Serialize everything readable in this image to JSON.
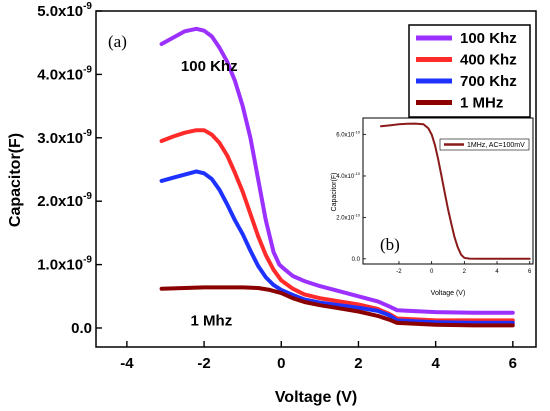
{
  "chart_data": [
    {
      "type": "line",
      "panel_label": "(a)",
      "xlabel": "Voltage (V)",
      "ylabel": "Capacitor(F)",
      "xlim": [
        -4.8,
        6.6
      ],
      "ylim": [
        -3e-10,
        5e-09
      ],
      "xticks": [
        -4,
        -2,
        0,
        2,
        4,
        6
      ],
      "xtick_labels": [
        "-4",
        "-2",
        "0",
        "2",
        "4",
        "6"
      ],
      "yticks": [
        0,
        1e-09,
        2e-09,
        3e-09,
        4e-09,
        5e-09
      ],
      "ytick_labels": [
        {
          "mantissa": "0.0",
          "exp": ""
        },
        {
          "mantissa": "1.0x10",
          "exp": "-9"
        },
        {
          "mantissa": "2.0x10",
          "exp": "-9"
        },
        {
          "mantissa": "3.0x10",
          "exp": "-9"
        },
        {
          "mantissa": "4.0x10",
          "exp": "-9"
        },
        {
          "mantissa": "5.0x10",
          "exp": "-9"
        }
      ],
      "legend_position": "top-right",
      "annotations": [
        {
          "text": "100 Khz",
          "x": -2.6,
          "y": 4.05e-09
        },
        {
          "text": "1 Mhz",
          "x": -2.35,
          "y": 4e-11
        }
      ],
      "series": [
        {
          "name": "100 Khz",
          "color": "#9b30ff",
          "x": [
            -3.1,
            -2.8,
            -2.5,
            -2.2,
            -2.0,
            -1.8,
            -1.6,
            -1.4,
            -1.2,
            -1.0,
            -0.8,
            -0.6,
            -0.4,
            -0.2,
            -0.05,
            0.1,
            0.3,
            0.6,
            1.0,
            1.5,
            2.0,
            2.5,
            2.8,
            3.0,
            4.0,
            5.0,
            6.0
          ],
          "y": [
            4.48e-09,
            4.58e-09,
            4.68e-09,
            4.72e-09,
            4.69e-09,
            4.6e-09,
            4.42e-09,
            4.2e-09,
            3.9e-09,
            3.5e-09,
            3e-09,
            2.35e-09,
            1.7e-09,
            1.2e-09,
            1e-09,
            9.2e-10,
            8.2e-10,
            7.4e-10,
            6.6e-10,
            5.8e-10,
            5e-10,
            4.2e-10,
            3.4e-10,
            2.8e-10,
            2.5e-10,
            2.4e-10,
            2.4e-10
          ]
        },
        {
          "name": "400 Khz",
          "color": "#ff2a2a",
          "x": [
            -3.1,
            -2.8,
            -2.5,
            -2.2,
            -2.0,
            -1.8,
            -1.6,
            -1.4,
            -1.2,
            -1.0,
            -0.8,
            -0.6,
            -0.4,
            -0.2,
            0.0,
            0.3,
            0.6,
            1.0,
            1.5,
            2.0,
            2.5,
            2.8,
            3.0,
            4.0,
            5.0,
            6.0
          ],
          "y": [
            2.95e-09,
            3.02e-09,
            3.08e-09,
            3.12e-09,
            3.12e-09,
            3.05e-09,
            2.92e-09,
            2.72e-09,
            2.45e-09,
            2.15e-09,
            1.8e-09,
            1.45e-09,
            1.15e-09,
            9.2e-10,
            7.5e-10,
            6.2e-10,
            5.3e-10,
            4.7e-10,
            4.2e-10,
            3.7e-10,
            3e-10,
            2.2e-10,
            1.5e-10,
            1.2e-10,
            1.2e-10,
            1.2e-10
          ]
        },
        {
          "name": "700 Khz",
          "color": "#1e32ff",
          "x": [
            -3.1,
            -2.8,
            -2.5,
            -2.2,
            -2.0,
            -1.8,
            -1.6,
            -1.4,
            -1.2,
            -1.0,
            -0.8,
            -0.6,
            -0.4,
            -0.2,
            0.0,
            0.3,
            0.6,
            1.0,
            1.5,
            2.0,
            2.5,
            2.8,
            3.0,
            4.0,
            5.0,
            6.0
          ],
          "y": [
            2.32e-09,
            2.37e-09,
            2.42e-09,
            2.47e-09,
            2.44e-09,
            2.35e-09,
            2.18e-09,
            1.95e-09,
            1.7e-09,
            1.48e-09,
            1.22e-09,
            9.8e-10,
            8e-10,
            6.8e-10,
            6e-10,
            5.2e-10,
            4.5e-10,
            4e-10,
            3.6e-10,
            3.2e-10,
            2.7e-10,
            2e-10,
            1.2e-10,
            9e-11,
            8e-11,
            8e-11
          ]
        },
        {
          "name": "1 MHz",
          "color": "#8b0000",
          "x": [
            -3.1,
            -2.5,
            -2.0,
            -1.5,
            -1.0,
            -0.6,
            -0.3,
            0.0,
            0.3,
            0.6,
            1.0,
            1.5,
            2.0,
            2.5,
            2.8,
            3.0,
            4.0,
            5.0,
            6.0
          ],
          "y": [
            6.2e-10,
            6.3e-10,
            6.4e-10,
            6.4e-10,
            6.4e-10,
            6.3e-10,
            6e-10,
            5.5e-10,
            4.7e-10,
            4.1e-10,
            3.6e-10,
            3.1e-10,
            2.6e-10,
            1.9e-10,
            1.3e-10,
            8e-11,
            5e-11,
            4e-11,
            4e-11
          ]
        }
      ]
    },
    {
      "type": "line",
      "panel_label": "(b)",
      "xlabel": "Voltage (V)",
      "ylabel": "Capacitor(F)",
      "xlim": [
        -4.2,
        6.2
      ],
      "ylim": [
        -2.5e-11,
        6.8e-10
      ],
      "xticks": [
        -2,
        0,
        2,
        4,
        6
      ],
      "xtick_labels": [
        "-2",
        "0",
        "2",
        "4",
        "6"
      ],
      "yticks": [
        0,
        2e-10,
        4e-10,
        6e-10
      ],
      "ytick_labels": [
        {
          "mantissa": "0.0",
          "exp": ""
        },
        {
          "mantissa": "2.0x10",
          "exp": "-10"
        },
        {
          "mantissa": "4.0x10",
          "exp": "-10"
        },
        {
          "mantissa": "6.0x10",
          "exp": "-10"
        }
      ],
      "legend_position": "top-right",
      "series": [
        {
          "name": "1MHz, AC=100mV",
          "color": "#8b1a1a",
          "x": [
            -3.1,
            -2.5,
            -2.0,
            -1.5,
            -1.0,
            -0.5,
            -0.2,
            0.0,
            0.2,
            0.4,
            0.6,
            0.8,
            1.0,
            1.2,
            1.4,
            1.6,
            1.8,
            2.0,
            2.3,
            3.0,
            4.0,
            5.0,
            6.0
          ],
          "y": [
            6.4e-10,
            6.45e-10,
            6.5e-10,
            6.52e-10,
            6.53e-10,
            6.5e-10,
            6.3e-10,
            6e-10,
            5.5e-10,
            4.8e-10,
            4e-10,
            3.2e-10,
            2.4e-10,
            1.7e-10,
            1.05e-10,
            5.5e-11,
            2e-11,
            5e-12,
            1e-12,
            0.0,
            0.0,
            0.0,
            0.0
          ]
        }
      ]
    }
  ]
}
